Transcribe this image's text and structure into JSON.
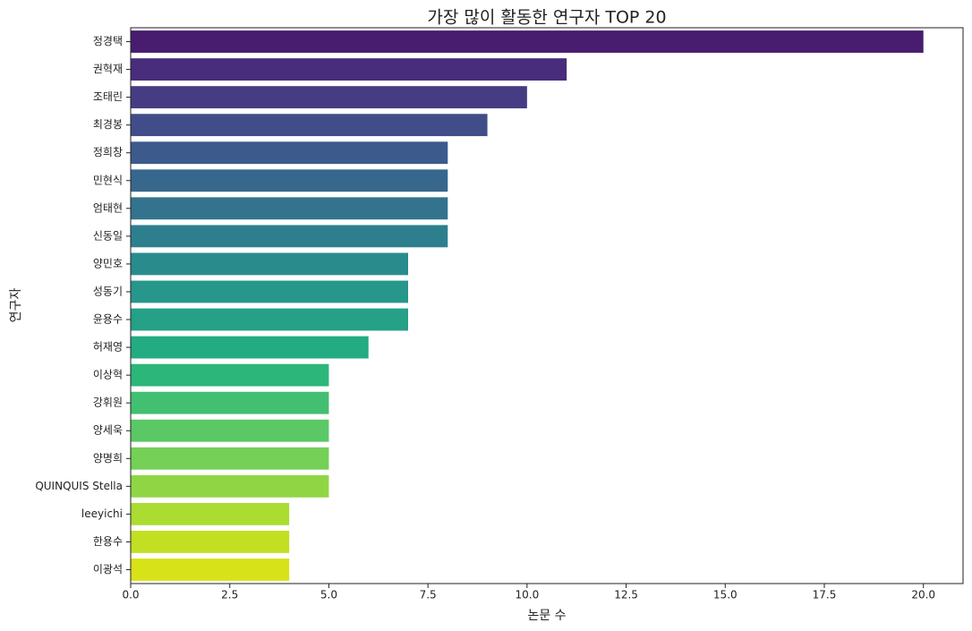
{
  "chart_data": {
    "type": "barh",
    "title": "가장 많이 활동한 연구자 TOP 20",
    "x_label": "논문 수",
    "y_label": "연구자",
    "categories": [
      "정경택",
      "권혁재",
      "조태린",
      "최경봉",
      "정희창",
      "민현식",
      "엄태현",
      "신동일",
      "양민호",
      "성동기",
      "윤용수",
      "허재영",
      "이상혁",
      "강휘원",
      "양세욱",
      "양명희",
      "QUINQUIS Stella",
      "leeyichi",
      "한용수",
      "이광석"
    ],
    "values": [
      20,
      11,
      10,
      9,
      8,
      8,
      8,
      8,
      7,
      7,
      7,
      6,
      5,
      5,
      5,
      5,
      5,
      4,
      4,
      4
    ],
    "colors": [
      "#481c6e",
      "#472d7b",
      "#453c83",
      "#404d89",
      "#3c5a8c",
      "#37678d",
      "#33738e",
      "#2e7f8e",
      "#2a8b8d",
      "#27968b",
      "#24a187",
      "#23ab82",
      "#2cb67a",
      "#42bf70",
      "#5ac865",
      "#74d056",
      "#90d644",
      "#aadc32",
      "#c2df22",
      "#d8e219"
    ],
    "xlim": [
      0,
      21
    ],
    "xticks": [
      {
        "value": 0,
        "label": "0.0"
      },
      2.5,
      {
        "value": 5,
        "label": "5.0"
      },
      7.5,
      {
        "value": 10,
        "label": "10.0"
      },
      12.5,
      {
        "value": 15,
        "label": "15.0"
      },
      17.5,
      {
        "value": 20,
        "label": "20.0"
      }
    ]
  }
}
